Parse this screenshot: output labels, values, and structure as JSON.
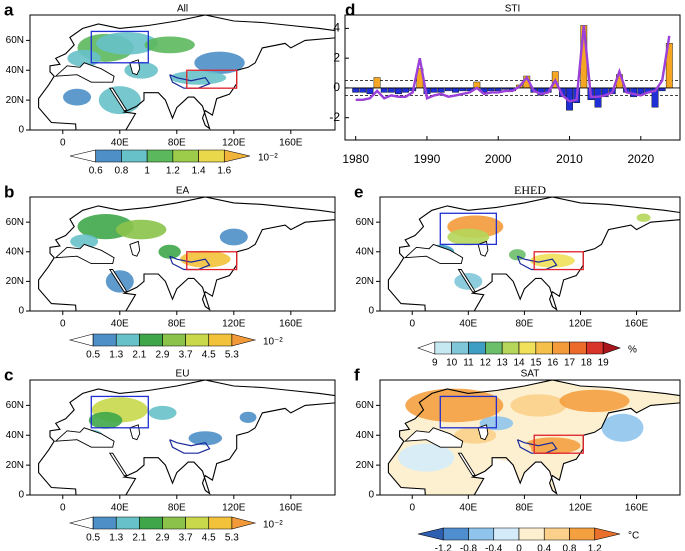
{
  "chart_data": [
    {
      "type": "map",
      "panel": "a",
      "title": "All",
      "xlim": [
        -23,
        191
      ],
      "ylim": [
        0,
        77
      ],
      "xticks": [
        0,
        {
          "value": 40,
          "label": "40E"
        },
        {
          "value": 80,
          "label": "80E"
        },
        {
          "value": 120,
          "label": "120E"
        },
        {
          "value": 160,
          "label": "160E"
        }
      ],
      "yticks": [
        0,
        {
          "value": 20,
          "label": "20N"
        },
        {
          "value": 40,
          "label": "40N"
        },
        {
          "value": 60,
          "label": "60N"
        }
      ],
      "colorbar": {
        "ticks": [
          0.6,
          0.8,
          1,
          1.2,
          1.4,
          1.6
        ],
        "unit": "10⁻²",
        "colors": [
          "#ffffff",
          "#4e8fc8",
          "#67c1c9",
          "#5cb85c",
          "#9ccc4a",
          "#e8d84a",
          "#f2b33a"
        ]
      }
    },
    {
      "type": "map",
      "panel": "b",
      "title": "EA",
      "xlim": [
        -23,
        191
      ],
      "ylim": [
        0,
        77
      ],
      "xticks": [
        0,
        {
          "value": 40,
          "label": "40E"
        },
        {
          "value": 80,
          "label": "80E"
        },
        {
          "value": 120,
          "label": "120E"
        },
        {
          "value": 160,
          "label": "160E"
        }
      ],
      "yticks": [
        0,
        {
          "value": 20,
          "label": "20N"
        },
        {
          "value": 40,
          "label": "40N"
        },
        {
          "value": 60,
          "label": "60N"
        }
      ],
      "colorbar": {
        "ticks": [
          0.5,
          1.3,
          2.1,
          2.9,
          3.7,
          4.5,
          5.3
        ],
        "unit": "10⁻²",
        "colors": [
          "#ffffff",
          "#4e8fc8",
          "#67c1c9",
          "#3fa64a",
          "#8bc34a",
          "#c8d84a",
          "#f2c23a",
          "#f29a3a"
        ]
      }
    },
    {
      "type": "map",
      "panel": "c",
      "title": "EU",
      "xlim": [
        -23,
        191
      ],
      "ylim": [
        0,
        77
      ],
      "xticks": [
        0,
        {
          "value": 40,
          "label": "40E"
        },
        {
          "value": 80,
          "label": "80E"
        },
        {
          "value": 120,
          "label": "120E"
        },
        {
          "value": 160,
          "label": "160E"
        }
      ],
      "yticks": [
        0,
        {
          "value": 20,
          "label": "20N"
        },
        {
          "value": 40,
          "label": "40N"
        },
        {
          "value": 60,
          "label": "60N"
        }
      ],
      "colorbar": {
        "ticks": [
          0.5,
          1.3,
          2.1,
          2.9,
          3.7,
          4.5,
          5.3
        ],
        "unit": "10⁻²",
        "colors": [
          "#ffffff",
          "#4e8fc8",
          "#67c1c9",
          "#3fa64a",
          "#8bc34a",
          "#c8d84a",
          "#f2c23a",
          "#f29a3a"
        ]
      }
    },
    {
      "type": "bar",
      "panel": "d",
      "title": "STI",
      "xlim": [
        1978.5,
        2025.5
      ],
      "ylim": [
        -3.5,
        4.9
      ],
      "xticks": [
        1980,
        1990,
        2000,
        2010,
        2020
      ],
      "yticks": [
        -2,
        0,
        2,
        4
      ],
      "hlines": [
        0.5,
        -0.5
      ],
      "x": [
        1980,
        1981,
        1982,
        1983,
        1984,
        1985,
        1986,
        1987,
        1988,
        1989,
        1990,
        1991,
        1992,
        1993,
        1994,
        1995,
        1996,
        1997,
        1998,
        1999,
        2000,
        2001,
        2002,
        2003,
        2004,
        2005,
        2006,
        2007,
        2008,
        2009,
        2010,
        2011,
        2012,
        2013,
        2014,
        2015,
        2016,
        2017,
        2018,
        2019,
        2020,
        2021,
        2022,
        2023,
        2024
      ],
      "bar_colors": {
        "positive": "#f5a623",
        "negative": "#1f2fd6"
      },
      "values": [
        -0.3,
        -0.3,
        -0.4,
        0.7,
        -0.3,
        -0.3,
        -0.4,
        -0.3,
        -0.2,
        1.3,
        -0.4,
        -0.3,
        -0.3,
        -0.2,
        -0.3,
        -0.2,
        -0.2,
        0.4,
        -0.3,
        -0.2,
        -0.2,
        -0.1,
        -0.2,
        0.2,
        0.8,
        -0.3,
        -0.5,
        -0.3,
        1.1,
        -0.6,
        -1.5,
        -1.0,
        4.2,
        -0.8,
        -1.3,
        -0.6,
        -0.4,
        0.9,
        -0.3,
        -0.6,
        -0.4,
        -0.3,
        -1.3,
        -0.2,
        3.0
      ],
      "line": {
        "color": "#9b40d8",
        "values": [
          -0.8,
          -0.8,
          -0.7,
          -0.2,
          -0.7,
          -0.5,
          -0.6,
          -0.6,
          -0.3,
          2.0,
          -0.7,
          -0.5,
          -0.4,
          -0.6,
          -0.5,
          -0.4,
          -0.3,
          0.0,
          -0.4,
          -0.3,
          -0.3,
          -0.2,
          -0.2,
          0.1,
          0.7,
          -0.2,
          -0.4,
          -0.3,
          0.5,
          -0.5,
          -0.9,
          -0.8,
          4.2,
          -0.6,
          -0.6,
          -0.5,
          -0.3,
          1.1,
          -0.3,
          -0.4,
          -0.5,
          -0.3,
          -0.2,
          0.5,
          3.5
        ]
      }
    },
    {
      "type": "map",
      "panel": "e",
      "title": "EHED",
      "xlim": [
        -23,
        191
      ],
      "ylim": [
        0,
        77
      ],
      "xticks": [
        0,
        {
          "value": 40,
          "label": "40E"
        },
        {
          "value": 80,
          "label": "80E"
        },
        {
          "value": 120,
          "label": "120E"
        },
        {
          "value": 160,
          "label": "160E"
        }
      ],
      "yticks": [
        0,
        {
          "value": 20,
          "label": "20N"
        },
        {
          "value": 40,
          "label": "40N"
        },
        {
          "value": 60,
          "label": "60N"
        }
      ],
      "colorbar": {
        "ticks": [
          9,
          10,
          11,
          12,
          13,
          14,
          15,
          16,
          17,
          18,
          19
        ],
        "unit": "%",
        "colors": [
          "#ffffff",
          "#c6e8f0",
          "#7fc6d8",
          "#3f9ec4",
          "#6bbf6b",
          "#b5d65a",
          "#f0e05a",
          "#f5c04a",
          "#f39a3a",
          "#ec6a2a",
          "#d8342a",
          "#a8151a"
        ]
      }
    },
    {
      "type": "map",
      "panel": "f",
      "title": "SAT",
      "xlim": [
        -23,
        191
      ],
      "ylim": [
        0,
        77
      ],
      "xticks": [
        0,
        {
          "value": 40,
          "label": "40E"
        },
        {
          "value": 80,
          "label": "80E"
        },
        {
          "value": 120,
          "label": "120E"
        },
        {
          "value": 160,
          "label": "160E"
        }
      ],
      "yticks": [
        0,
        {
          "value": 20,
          "label": "20N"
        },
        {
          "value": 40,
          "label": "40N"
        },
        {
          "value": 60,
          "label": "60N"
        }
      ],
      "colorbar": {
        "ticks": [
          -1.2,
          -0.8,
          -0.4,
          0,
          0.4,
          0.8,
          1.2
        ],
        "unit": "°C",
        "colors": [
          "#2f5fb0",
          "#4f8fd0",
          "#8fc4ec",
          "#d4ecfa",
          "#fdf0d0",
          "#fbd08a",
          "#f4a040",
          "#e8702a"
        ]
      }
    }
  ]
}
